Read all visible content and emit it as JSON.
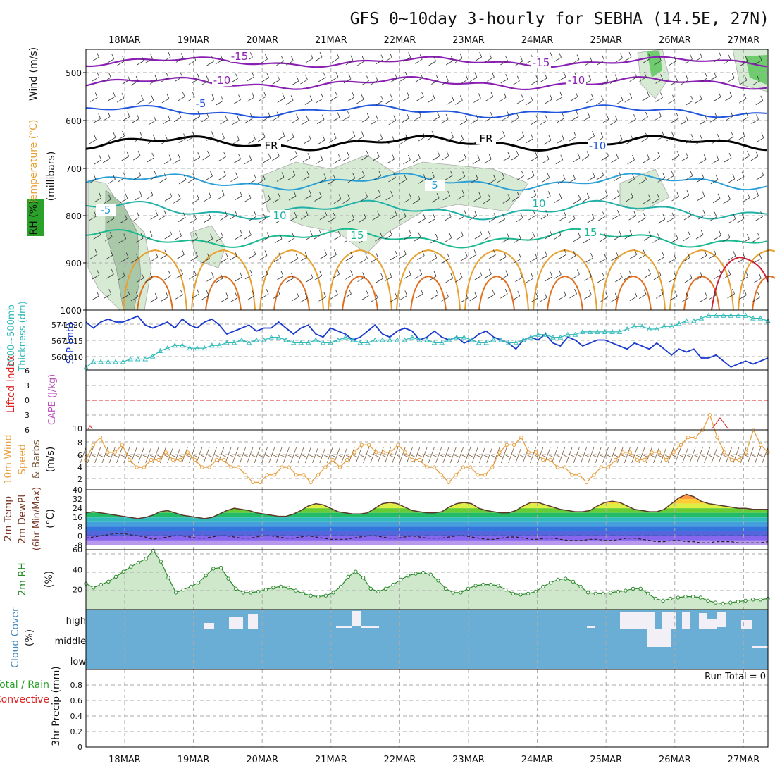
{
  "title": "GFS 0~10day 3-hourly for SEBHA (14.5E, 27N)",
  "dates": [
    "18MAR",
    "19MAR",
    "20MAR",
    "21MAR",
    "22MAR",
    "23MAR",
    "24MAR",
    "25MAR",
    "26MAR",
    "27MAR"
  ],
  "colors": {
    "temp_cold": "#8a1fb4",
    "temp_m10": "#2255dd",
    "temp_fr": "#000000",
    "temp_warm": "#22b8c8",
    "temp_hot": "#e8a030",
    "slp": "#1a3acc",
    "thickness": "#33bbbb",
    "wind": "#e8a040",
    "rh": "#2a8a2a",
    "cloud": "#6aaed6",
    "li": "#dd2222",
    "cape": "#bb55bb"
  },
  "panels": {
    "upper": {
      "labels": [
        "Wind (m/s)",
        "Temperature (°C)",
        "RH (%)",
        "(millibars)"
      ],
      "yticks": [
        "500",
        "600",
        "700",
        "800",
        "900",
        "1000"
      ],
      "isotherm_labels": [
        "-15",
        "-10",
        "-5",
        "FR",
        "-15",
        "-10",
        "5",
        "-10",
        "-5",
        "10",
        "15",
        "10",
        "15",
        "FR"
      ]
    },
    "slp": {
      "labels": [
        "1000~500mb",
        "Thickness (dm)",
        "SLP (mb)"
      ],
      "left_ticks": [
        "574",
        "567",
        "560"
      ],
      "right_ticks": [
        "1020",
        "1015",
        "1010"
      ]
    },
    "li": {
      "labels": [
        "Lifted Index",
        "CAPE (J/kg)"
      ],
      "yticks": [
        "6",
        "3",
        "0",
        "3",
        "6"
      ],
      "cape_tick": "10"
    },
    "wind": {
      "labels": [
        "10m Wind",
        "Speed",
        "& Barbs",
        "(m/s)"
      ],
      "yticks": [
        "8",
        "6",
        "4",
        "2"
      ]
    },
    "temp": {
      "labels": [
        "2m Temp",
        "2m DewPt",
        "(6hr Min/Max)",
        "(°C)"
      ],
      "yticks": [
        "40",
        "32",
        "24",
        "16",
        "8",
        "0",
        "-8"
      ]
    },
    "rh": {
      "labels": [
        "2m RH",
        "(%)"
      ],
      "yticks": [
        "60",
        "40",
        "20"
      ]
    },
    "cloud": {
      "labels": [
        "Cloud Cover",
        "(%)"
      ],
      "yticks": [
        "high",
        "middle",
        "low"
      ]
    },
    "precip": {
      "labels": [
        "Total / Rain",
        "Convective",
        "3hr Precip (mm)"
      ],
      "yticks": [
        "0.8",
        "0.6",
        "0.4",
        "0.2",
        "0"
      ],
      "run_total": "Run Total = 0"
    }
  },
  "chart_data": [
    {
      "type": "line",
      "title": "2m RH (%)",
      "series": [
        {
          "name": "2m RH",
          "values": [
            26,
            22,
            25,
            28,
            33,
            38,
            43,
            47,
            51,
            59,
            48,
            32,
            17,
            20,
            23,
            27,
            34,
            41,
            42,
            31,
            21,
            17,
            17,
            18,
            20,
            22,
            23,
            22,
            19,
            16,
            14,
            13,
            14,
            17,
            23,
            33,
            38,
            32,
            21,
            18,
            21,
            25,
            30,
            34,
            36,
            37,
            35,
            29,
            21,
            17,
            17,
            21,
            24,
            25,
            25,
            24,
            20,
            16,
            15,
            16,
            18,
            23,
            27,
            30,
            31,
            28,
            23,
            17,
            16,
            16,
            17,
            18,
            19,
            21,
            21,
            16,
            11,
            9,
            11,
            12,
            13,
            13,
            12,
            9,
            7,
            6,
            7,
            8,
            9,
            10,
            10,
            11
          ]
        }
      ],
      "ylim": [
        0,
        60
      ]
    },
    {
      "type": "line",
      "title": "10m Wind Speed (m/s)",
      "series": [
        {
          "name": "10m wind speed",
          "values": [
            4,
            6,
            7,
            5,
            5,
            6,
            4,
            3,
            3,
            4,
            4,
            5,
            4,
            4,
            5,
            4,
            3,
            3,
            4,
            4,
            3,
            3,
            2,
            1,
            1,
            2,
            2,
            3,
            3,
            2,
            2,
            1,
            2,
            3,
            4,
            3,
            4,
            5,
            6,
            6,
            5,
            5,
            5,
            6,
            5,
            4,
            4,
            3,
            3,
            2,
            1,
            2,
            3,
            3,
            2,
            2,
            3,
            5,
            6,
            6,
            7,
            5,
            5,
            4,
            4,
            3,
            3,
            2,
            2,
            1,
            2,
            3,
            3,
            4,
            5,
            5,
            4,
            4,
            5,
            5,
            4,
            5,
            6,
            7,
            7,
            8,
            10,
            7,
            5,
            4,
            4,
            5,
            8,
            6,
            5
          ]
        }
      ],
      "ylim": [
        0,
        8
      ]
    },
    {
      "type": "line",
      "title": "SLP (mb)",
      "series": [
        {
          "name": "SLP",
          "values": [
            1021,
            1019,
            1021,
            1022,
            1021,
            1021,
            1022,
            1023,
            1020,
            1019,
            1020,
            1021,
            1019,
            1022,
            1020,
            1019,
            1021,
            1022,
            1020,
            1017,
            1018,
            1019,
            1020,
            1018,
            1019,
            1019,
            1021,
            1019,
            1017,
            1019,
            1020,
            1017,
            1016,
            1019,
            1018,
            1017,
            1015,
            1016,
            1018,
            1020,
            1017,
            1016,
            1018,
            1019,
            1018,
            1015,
            1016,
            1018,
            1016,
            1015,
            1016,
            1014,
            1015,
            1017,
            1018,
            1016,
            1015,
            1014,
            1012,
            1015,
            1016,
            1015,
            1017,
            1014,
            1013,
            1016,
            1015,
            1013,
            1014,
            1015,
            1015,
            1014,
            1013,
            1012,
            1014,
            1013,
            1012,
            1014,
            1012,
            1010,
            1012,
            1011,
            1012,
            1009,
            1009,
            1010,
            1008,
            1006,
            1007,
            1008,
            1007,
            1008,
            1009
          ]
        }
      ],
      "ylim": [
        1005,
        1025
      ]
    },
    {
      "type": "line",
      "title": "1000~500mb Thickness (dm)",
      "series": [
        {
          "name": "Thickness",
          "values": [
            557,
            559,
            559,
            559,
            559,
            559,
            560,
            560,
            560,
            561,
            563,
            564,
            565,
            565,
            564,
            564,
            564,
            565,
            565,
            566,
            566,
            567,
            566,
            567,
            567,
            568,
            568,
            567,
            566,
            566,
            566,
            567,
            566,
            566,
            567,
            568,
            567,
            566,
            566,
            567,
            567,
            567,
            567,
            567,
            568,
            567,
            567,
            566,
            566,
            567,
            568,
            568,
            567,
            566,
            566,
            567,
            567,
            566,
            566,
            567,
            568,
            569,
            569,
            568,
            568,
            569,
            569,
            570,
            570,
            570,
            570,
            570,
            570,
            571,
            572,
            572,
            571,
            571,
            572,
            572,
            573,
            574,
            574,
            575,
            576,
            576,
            576,
            576,
            576,
            576,
            575,
            575,
            574
          ]
        }
      ],
      "ylim": [
        556,
        578
      ]
    },
    {
      "type": "line",
      "title": "2m Temp / DewPt (°C)",
      "series": [
        {
          "name": "2m Temp",
          "values": [
            20,
            21,
            20,
            19,
            18,
            17,
            16,
            15,
            16,
            18,
            21,
            22,
            20,
            18,
            17,
            16,
            15,
            16,
            19,
            22,
            24,
            23,
            22,
            20,
            19,
            18,
            17,
            17,
            19,
            22,
            26,
            28,
            27,
            24,
            21,
            20,
            19,
            19,
            20,
            24,
            28,
            29,
            28,
            25,
            22,
            21,
            20,
            20,
            21,
            25,
            28,
            29,
            28,
            24,
            22,
            21,
            20,
            20,
            22,
            26,
            29,
            29,
            27,
            25,
            23,
            22,
            21,
            21,
            22,
            26,
            29,
            30,
            29,
            26,
            23,
            22,
            21,
            21,
            23,
            28,
            33,
            36,
            34,
            30,
            28,
            27,
            26,
            25,
            24,
            24,
            23,
            23,
            23
          ]
        },
        {
          "name": "2m DewPt",
          "values": [
            -2,
            -1,
            0,
            1,
            2,
            2,
            1,
            0,
            -1,
            -3,
            -2,
            -1,
            0,
            0,
            -1,
            -2,
            -2,
            -1,
            0,
            0,
            -1,
            -2,
            -2,
            -1,
            0,
            0,
            -1,
            -2,
            -2,
            -1,
            0,
            -1,
            -2,
            -3,
            -3,
            -3,
            -2,
            -1,
            0,
            0,
            -1,
            -2,
            -2,
            -1,
            0,
            -1,
            -2,
            -2,
            -2,
            -1,
            0,
            0,
            -1,
            -2,
            -3,
            -3,
            -2,
            -1,
            -1,
            -2,
            -3,
            -3,
            -2,
            -2,
            -3,
            -4,
            -4,
            -4,
            -3,
            -3,
            -4,
            -4,
            -3,
            -2,
            -2,
            -3,
            -4,
            -5,
            -5,
            -4,
            -4,
            -5,
            -5,
            -6,
            -6,
            -5,
            -5,
            -5,
            -6,
            -6,
            -6,
            -6,
            -5
          ]
        }
      ],
      "ylim": [
        -12,
        40
      ]
    }
  ]
}
